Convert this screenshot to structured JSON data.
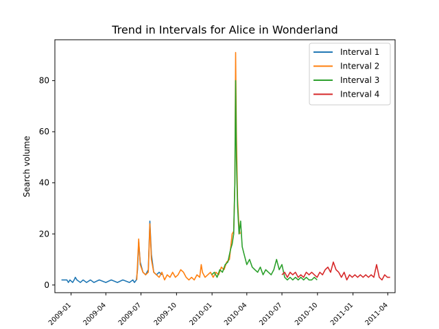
{
  "chart_data": {
    "type": "line",
    "title": "Trend in Intervals for Alice in Wonderland",
    "xlabel": "",
    "ylabel": "Search volume",
    "x_type": "date",
    "xlim": [
      "2008-11-20",
      "2011-04-20"
    ],
    "ylim": [
      -3,
      96
    ],
    "xticks": [
      "2009-01",
      "2009-04",
      "2009-07",
      "2009-10",
      "2010-01",
      "2010-04",
      "2010-07",
      "2010-10",
      "2011-01",
      "2011-04"
    ],
    "yticks": [
      0,
      20,
      40,
      60,
      80
    ],
    "grid": false,
    "legend_position": "top-right",
    "series": [
      {
        "name": "Interval 1",
        "color": "#1f77b4",
        "points": [
          [
            "2008-12-07",
            2
          ],
          [
            "2008-12-21",
            2
          ],
          [
            "2008-12-25",
            1
          ],
          [
            "2008-12-29",
            2
          ],
          [
            "2009-01-05",
            1
          ],
          [
            "2009-01-09",
            2
          ],
          [
            "2009-01-12",
            3
          ],
          [
            "2009-01-16",
            2
          ],
          [
            "2009-01-25",
            1
          ],
          [
            "2009-02-01",
            2
          ],
          [
            "2009-02-10",
            1
          ],
          [
            "2009-02-20",
            2
          ],
          [
            "2009-03-01",
            1
          ],
          [
            "2009-03-15",
            2
          ],
          [
            "2009-04-01",
            1
          ],
          [
            "2009-04-15",
            2
          ],
          [
            "2009-05-01",
            1
          ],
          [
            "2009-05-15",
            2
          ],
          [
            "2009-06-01",
            1
          ],
          [
            "2009-06-10",
            2
          ],
          [
            "2009-06-14",
            1
          ],
          [
            "2009-06-19",
            2
          ],
          [
            "2009-06-22",
            6
          ],
          [
            "2009-06-25",
            17
          ],
          [
            "2009-06-29",
            9
          ],
          [
            "2009-07-06",
            5
          ],
          [
            "2009-07-13",
            4
          ],
          [
            "2009-07-20",
            6
          ],
          [
            "2009-07-24",
            25
          ],
          [
            "2009-07-28",
            12
          ],
          [
            "2009-08-03",
            5
          ],
          [
            "2009-08-10",
            4
          ],
          [
            "2009-08-17",
            5
          ],
          [
            "2009-08-24",
            4
          ]
        ]
      },
      {
        "name": "Interval 2",
        "color": "#ff7f0e",
        "points": [
          [
            "2009-06-20",
            2
          ],
          [
            "2009-06-25",
            18
          ],
          [
            "2009-06-29",
            8
          ],
          [
            "2009-07-06",
            5
          ],
          [
            "2009-07-13",
            4
          ],
          [
            "2009-07-20",
            5
          ],
          [
            "2009-07-24",
            24
          ],
          [
            "2009-07-28",
            10
          ],
          [
            "2009-08-03",
            5
          ],
          [
            "2009-08-10",
            4
          ],
          [
            "2009-08-17",
            3
          ],
          [
            "2009-08-24",
            5
          ],
          [
            "2009-08-31",
            2
          ],
          [
            "2009-09-07",
            4
          ],
          [
            "2009-09-14",
            3
          ],
          [
            "2009-09-21",
            5
          ],
          [
            "2009-09-28",
            3
          ],
          [
            "2009-10-05",
            4
          ],
          [
            "2009-10-12",
            6
          ],
          [
            "2009-10-19",
            5
          ],
          [
            "2009-10-26",
            3
          ],
          [
            "2009-11-02",
            2
          ],
          [
            "2009-11-09",
            3
          ],
          [
            "2009-11-16",
            2
          ],
          [
            "2009-11-23",
            4
          ],
          [
            "2009-11-30",
            3
          ],
          [
            "2009-12-04",
            8
          ],
          [
            "2009-12-07",
            5
          ],
          [
            "2009-12-14",
            3
          ],
          [
            "2009-12-21",
            4
          ],
          [
            "2009-12-28",
            5
          ],
          [
            "2010-01-04",
            3
          ],
          [
            "2010-01-11",
            5
          ],
          [
            "2010-01-18",
            4
          ],
          [
            "2010-01-25",
            7
          ],
          [
            "2010-02-01",
            6
          ],
          [
            "2010-02-08",
            9
          ],
          [
            "2010-02-15",
            10
          ],
          [
            "2010-02-22",
            20
          ],
          [
            "2010-02-26",
            21
          ],
          [
            "2010-03-01",
            40
          ],
          [
            "2010-03-03",
            91
          ],
          [
            "2010-03-05",
            60
          ],
          [
            "2010-03-08",
            34
          ],
          [
            "2010-03-12",
            22
          ],
          [
            "2010-03-15",
            20
          ]
        ]
      },
      {
        "name": "Interval 3",
        "color": "#2ca02c",
        "points": [
          [
            "2009-12-31",
            4
          ],
          [
            "2010-01-07",
            5
          ],
          [
            "2010-01-14",
            3
          ],
          [
            "2010-01-21",
            6
          ],
          [
            "2010-01-28",
            5
          ],
          [
            "2010-02-04",
            8
          ],
          [
            "2010-02-11",
            9
          ],
          [
            "2010-02-18",
            14
          ],
          [
            "2010-02-22",
            16
          ],
          [
            "2010-02-26",
            20
          ],
          [
            "2010-03-01",
            40
          ],
          [
            "2010-03-03",
            80
          ],
          [
            "2010-03-05",
            50
          ],
          [
            "2010-03-08",
            31
          ],
          [
            "2010-03-12",
            20
          ],
          [
            "2010-03-16",
            25
          ],
          [
            "2010-03-20",
            15
          ],
          [
            "2010-03-25",
            12
          ],
          [
            "2010-04-01",
            8
          ],
          [
            "2010-04-08",
            10
          ],
          [
            "2010-04-15",
            7
          ],
          [
            "2010-04-22",
            6
          ],
          [
            "2010-04-29",
            5
          ],
          [
            "2010-05-06",
            7
          ],
          [
            "2010-05-13",
            4
          ],
          [
            "2010-05-20",
            6
          ],
          [
            "2010-05-27",
            5
          ],
          [
            "2010-06-03",
            4
          ],
          [
            "2010-06-10",
            6
          ],
          [
            "2010-06-17",
            10
          ],
          [
            "2010-06-24",
            6
          ],
          [
            "2010-07-01",
            8
          ],
          [
            "2010-07-08",
            3
          ],
          [
            "2010-07-15",
            2
          ],
          [
            "2010-07-22",
            3
          ],
          [
            "2010-07-29",
            2
          ],
          [
            "2010-08-05",
            3
          ],
          [
            "2010-08-12",
            2
          ],
          [
            "2010-08-19",
            3
          ],
          [
            "2010-08-26",
            2
          ],
          [
            "2010-09-02",
            3
          ],
          [
            "2010-09-09",
            2
          ],
          [
            "2010-09-16",
            2
          ],
          [
            "2010-09-23",
            3
          ],
          [
            "2010-09-30",
            2
          ]
        ]
      },
      {
        "name": "Interval 4",
        "color": "#d62728",
        "points": [
          [
            "2010-07-01",
            4
          ],
          [
            "2010-07-08",
            5
          ],
          [
            "2010-07-15",
            3
          ],
          [
            "2010-07-22",
            5
          ],
          [
            "2010-07-29",
            4
          ],
          [
            "2010-08-05",
            5
          ],
          [
            "2010-08-12",
            3
          ],
          [
            "2010-08-19",
            4
          ],
          [
            "2010-08-26",
            3
          ],
          [
            "2010-09-02",
            5
          ],
          [
            "2010-09-09",
            4
          ],
          [
            "2010-09-16",
            5
          ],
          [
            "2010-09-23",
            4
          ],
          [
            "2010-09-30",
            3
          ],
          [
            "2010-10-07",
            5
          ],
          [
            "2010-10-14",
            4
          ],
          [
            "2010-10-21",
            6
          ],
          [
            "2010-10-28",
            7
          ],
          [
            "2010-11-04",
            5
          ],
          [
            "2010-11-11",
            9
          ],
          [
            "2010-11-18",
            6
          ],
          [
            "2010-11-25",
            5
          ],
          [
            "2010-12-02",
            3
          ],
          [
            "2010-12-09",
            5
          ],
          [
            "2010-12-16",
            2
          ],
          [
            "2010-12-23",
            4
          ],
          [
            "2010-12-30",
            3
          ],
          [
            "2011-01-06",
            4
          ],
          [
            "2011-01-13",
            3
          ],
          [
            "2011-01-20",
            4
          ],
          [
            "2011-01-27",
            3
          ],
          [
            "2011-02-03",
            4
          ],
          [
            "2011-02-10",
            3
          ],
          [
            "2011-02-17",
            4
          ],
          [
            "2011-02-24",
            3
          ],
          [
            "2011-03-03",
            8
          ],
          [
            "2011-03-10",
            3
          ],
          [
            "2011-03-17",
            2
          ],
          [
            "2011-03-24",
            4
          ],
          [
            "2011-03-31",
            3
          ],
          [
            "2011-04-07",
            3
          ]
        ]
      }
    ]
  }
}
